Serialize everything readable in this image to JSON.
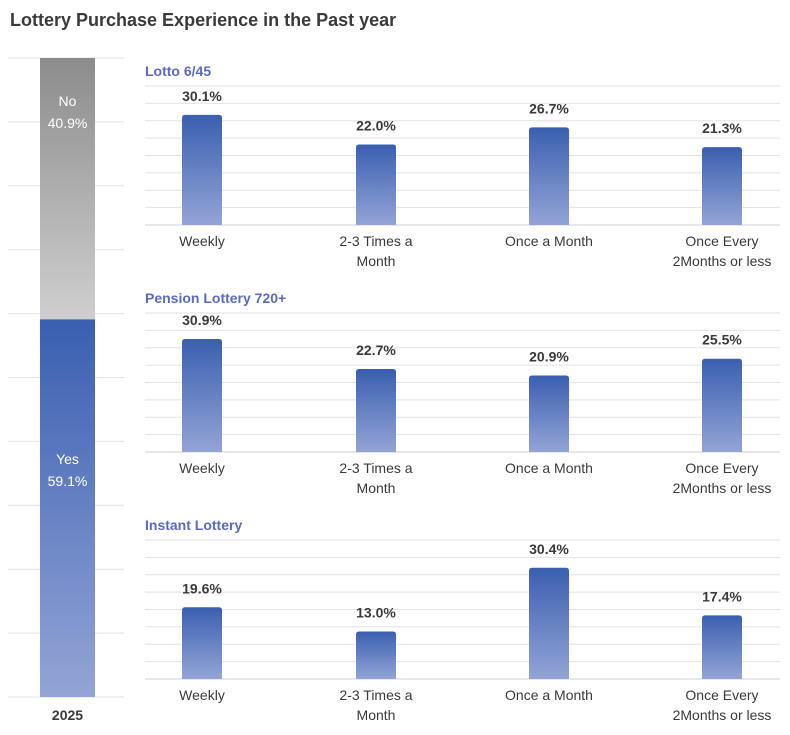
{
  "title": "Lottery Purchase Experience in the Past year",
  "chart_data": [
    {
      "type": "bar",
      "stacked": true,
      "categories": [
        "2025"
      ],
      "series": [
        {
          "name": "Yes",
          "values": [
            59.1
          ],
          "color": "#3c62b6"
        },
        {
          "name": "No",
          "values": [
            40.9
          ],
          "color": "#8a8a8a"
        }
      ],
      "labels": {
        "yes": "Yes",
        "yes_value": "59.1%",
        "no": "No",
        "no_value": "40.9%"
      },
      "ylim": [
        0,
        100
      ]
    },
    {
      "type": "bar",
      "title": "Lotto 6/45",
      "categories": [
        "Weekly",
        "2-3 Times a Month",
        "Once a Month",
        "Once Every 2Months or less"
      ],
      "values": [
        30.1,
        22.0,
        26.7,
        21.3
      ],
      "value_labels": [
        "30.1%",
        "22.0%",
        "26.7%",
        "21.3%"
      ],
      "ylim": [
        0,
        38
      ]
    },
    {
      "type": "bar",
      "title": "Pension Lottery 720+",
      "categories": [
        "Weekly",
        "2-3 Times a Month",
        "Once a Month",
        "Once Every 2Months or less"
      ],
      "values": [
        30.9,
        22.7,
        20.9,
        25.5
      ],
      "value_labels": [
        "30.9%",
        "22.7%",
        "20.9%",
        "25.5%"
      ],
      "ylim": [
        0,
        38
      ]
    },
    {
      "type": "bar",
      "title": "Instant Lottery",
      "categories": [
        "Weekly",
        "2-3 Times a Month",
        "Once a Month",
        "Once Every 2Months or less"
      ],
      "values": [
        19.6,
        13.0,
        30.4,
        17.4
      ],
      "value_labels": [
        "19.6%",
        "13.0%",
        "30.4%",
        "17.4%"
      ],
      "ylim": [
        0,
        38
      ]
    }
  ],
  "category_label_lines": [
    [
      "Weekly"
    ],
    [
      "2-3 Times a",
      "Month"
    ],
    [
      "Once a Month"
    ],
    [
      "Once Every",
      "2Months or less"
    ]
  ],
  "colors": {
    "bar_top": "#3a5fb0",
    "bar_bottom": "#93a4d6",
    "no_top": "#8c8c8c",
    "no_bottom": "#cfcfcf",
    "panel_title": "#5a6bbf",
    "grid": "#e2e2e2",
    "text": "#3a3a3a"
  }
}
